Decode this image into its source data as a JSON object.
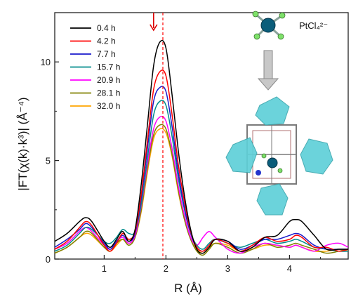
{
  "chart_data": {
    "type": "line",
    "x_axis": {
      "label": "R (Å)",
      "range": [
        0.2,
        4.95
      ],
      "ticks": [
        "1",
        "2",
        "3",
        "4"
      ]
    },
    "y_axis": {
      "label": "|FT(χ(k)·k³)|  (Å⁻⁴)",
      "range": [
        0,
        12.5
      ],
      "ticks": [
        "0",
        "5",
        "10"
      ]
    },
    "grid": false,
    "legend_position": "top-left",
    "x": [
      0.2,
      0.4,
      0.6,
      0.7,
      0.8,
      1.0,
      1.1,
      1.2,
      1.3,
      1.4,
      1.5,
      1.6,
      1.7,
      1.8,
      1.9,
      2.0,
      2.1,
      2.2,
      2.3,
      2.4,
      2.5,
      2.6,
      2.7,
      2.8,
      3.0,
      3.2,
      3.4,
      3.6,
      3.8,
      4.0,
      4.1,
      4.2,
      4.4,
      4.6,
      4.8,
      4.95
    ],
    "series": [
      {
        "name": "0.4 h",
        "color": "#000000",
        "values": [
          0.9,
          1.3,
          1.9,
          2.1,
          1.9,
          0.9,
          0.6,
          1.0,
          1.4,
          0.9,
          1.5,
          3.8,
          6.8,
          9.8,
          11.0,
          10.7,
          8.3,
          5.5,
          3.2,
          1.5,
          0.5,
          0.3,
          0.6,
          1.0,
          0.9,
          0.4,
          0.6,
          1.1,
          1.2,
          1.9,
          2.0,
          1.9,
          1.2,
          0.5,
          0.5,
          0.5
        ]
      },
      {
        "name": "4.2 h",
        "color": "#ff0000",
        "values": [
          0.5,
          0.9,
          1.6,
          1.9,
          1.7,
          0.7,
          0.4,
          0.8,
          1.3,
          1.0,
          1.4,
          3.3,
          6.0,
          8.6,
          9.5,
          9.3,
          7.3,
          4.8,
          2.9,
          1.4,
          0.6,
          0.4,
          0.7,
          1.0,
          0.8,
          0.4,
          0.7,
          1.1,
          0.9,
          1.0,
          1.2,
          1.1,
          0.6,
          0.6,
          0.4,
          0.5
        ]
      },
      {
        "name": "7.7 h",
        "color": "#1a1acc",
        "values": [
          0.6,
          1.0,
          1.5,
          1.8,
          1.6,
          0.8,
          0.5,
          0.9,
          1.2,
          0.9,
          1.3,
          3.1,
          5.6,
          8.0,
          8.7,
          8.5,
          6.7,
          4.4,
          2.6,
          1.3,
          0.6,
          0.4,
          0.7,
          1.0,
          0.9,
          0.5,
          0.7,
          1.0,
          1.0,
          1.2,
          1.3,
          1.2,
          0.7,
          0.5,
          0.5,
          0.5
        ]
      },
      {
        "name": "15.7 h",
        "color": "#008b8b",
        "values": [
          0.4,
          0.7,
          1.3,
          1.6,
          1.5,
          0.9,
          0.8,
          1.1,
          1.5,
          1.3,
          1.4,
          2.8,
          5.1,
          7.3,
          8.0,
          7.8,
          6.2,
          4.1,
          2.5,
          1.3,
          0.7,
          0.5,
          0.8,
          1.0,
          0.8,
          0.6,
          0.8,
          1.0,
          0.8,
          0.9,
          1.0,
          0.9,
          0.6,
          0.5,
          0.4,
          0.4
        ]
      },
      {
        "name": "20.9 h",
        "color": "#ff00ff",
        "values": [
          0.5,
          0.8,
          1.4,
          1.6,
          1.4,
          0.7,
          0.5,
          0.9,
          1.1,
          0.8,
          1.2,
          2.7,
          4.8,
          6.6,
          7.2,
          7.0,
          5.6,
          3.7,
          2.2,
          1.1,
          0.7,
          1.1,
          1.4,
          1.1,
          0.5,
          0.3,
          0.6,
          0.8,
          0.7,
          0.6,
          0.7,
          0.6,
          0.4,
          0.7,
          0.8,
          0.6
        ]
      },
      {
        "name": "28.1 h",
        "color": "#808000",
        "values": [
          0.3,
          0.6,
          1.1,
          1.4,
          1.3,
          0.6,
          0.4,
          0.8,
          1.0,
          0.7,
          1.1,
          2.5,
          4.6,
          6.3,
          6.8,
          6.6,
          5.3,
          3.5,
          2.0,
          1.0,
          0.4,
          0.2,
          0.5,
          0.8,
          0.6,
          0.3,
          0.5,
          0.8,
          0.6,
          0.7,
          0.8,
          0.7,
          0.5,
          0.3,
          0.4,
          0.5
        ]
      },
      {
        "name": "32.0 h",
        "color": "#ffa500",
        "values": [
          0.3,
          0.6,
          1.1,
          1.3,
          1.2,
          0.6,
          0.4,
          0.7,
          1.0,
          0.8,
          1.1,
          2.4,
          4.4,
          6.1,
          6.6,
          6.4,
          5.2,
          3.4,
          2.0,
          1.0,
          0.5,
          0.3,
          0.6,
          0.8,
          0.7,
          0.4,
          0.5,
          0.7,
          0.7,
          0.6,
          0.7,
          0.6,
          0.4,
          0.4,
          0.5,
          0.4
        ]
      }
    ],
    "reference_line_x": 1.95,
    "arrow_x": 1.8,
    "inset_label": "PtCl₄²⁻"
  },
  "colors": {
    "reference_line": "#ff0000",
    "arrow": "#dd0000",
    "framework_polyhedra": "#5fd0d8",
    "pt_atom": "#0b5d7a",
    "cl_atom": "#7ee06a",
    "process_arrow": "#a9a9a9"
  }
}
